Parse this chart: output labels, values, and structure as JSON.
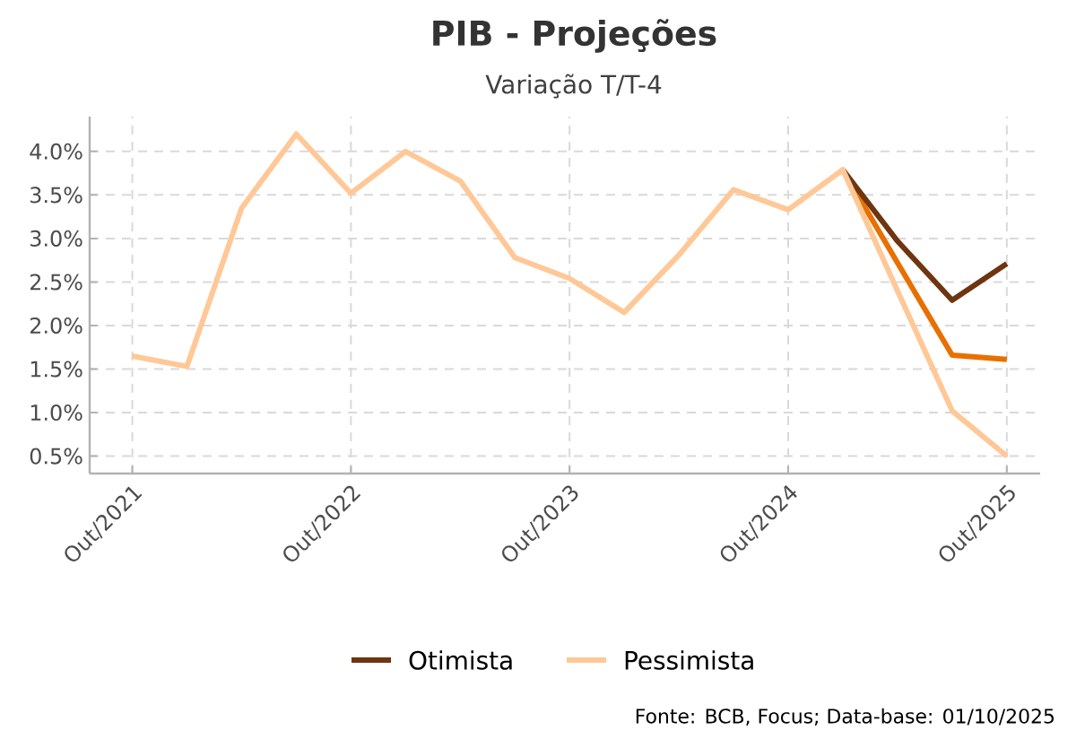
{
  "chart_data": {
    "type": "line",
    "title": "PIB - Projeções",
    "subtitle": "Variação T/T-4",
    "categories": [
      "Out/2021",
      null,
      null,
      null,
      "Out/2022",
      null,
      null,
      null,
      "Out/2023",
      null,
      null,
      null,
      "Out/2024",
      null,
      null,
      null,
      "Out/2025"
    ],
    "series": [
      {
        "color": "#e87000",
        "values": [
          null,
          null,
          null,
          null,
          null,
          null,
          null,
          null,
          null,
          null,
          null,
          null,
          null,
          3.79,
          2.72,
          1.66,
          1.61
        ]
      },
      {
        "name": "Otimista",
        "color": "#6e3510",
        "values": [
          null,
          null,
          null,
          null,
          null,
          null,
          null,
          null,
          null,
          null,
          null,
          null,
          null,
          3.79,
          2.97,
          2.29,
          2.71
        ]
      },
      {
        "name": "Pessimista",
        "color": "#ffc896",
        "values": [
          1.65,
          1.53,
          3.35,
          4.2,
          3.52,
          4.0,
          3.66,
          2.78,
          2.54,
          2.15,
          2.81,
          3.56,
          3.33,
          3.79,
          2.4,
          1.02,
          0.5
        ]
      }
    ],
    "ylim": [
      0.3,
      4.4
    ],
    "yticks": [
      {
        "value": 0.5,
        "label": "0.5%"
      },
      {
        "value": 1.0,
        "label": "1.0%"
      },
      {
        "value": 1.5,
        "label": "1.5%"
      },
      {
        "value": 2.0,
        "label": "2.0%"
      },
      {
        "value": 2.5,
        "label": "2.5%"
      },
      {
        "value": 3.0,
        "label": "3.0%"
      },
      {
        "value": 3.5,
        "label": "3.5%"
      },
      {
        "value": 4.0,
        "label": "4.0%"
      }
    ],
    "grid": true,
    "legend": "bottom",
    "line_style": "solid",
    "marker": "none",
    "annotations": [
      "Fonte: BCB, Focus; Data-base: 01/10/2025"
    ]
  }
}
